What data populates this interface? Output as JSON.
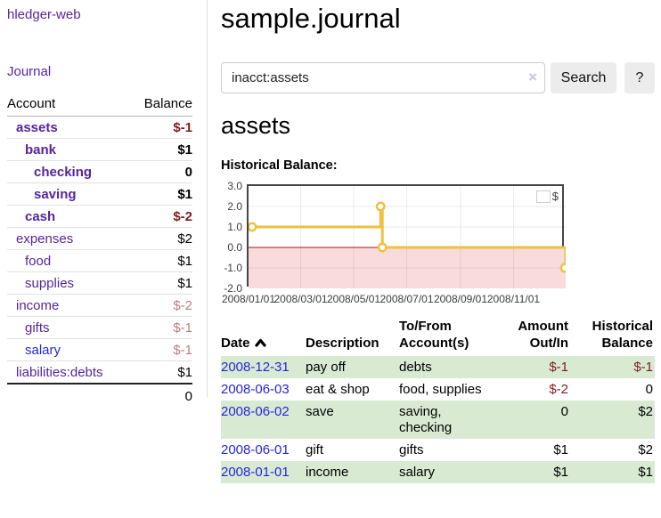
{
  "app": {
    "brand": "hledger-web"
  },
  "sidebar": {
    "nav": {
      "journal": "Journal"
    },
    "table_headers": {
      "account": "Account",
      "balance": "Balance"
    },
    "accounts": [
      {
        "name": "assets",
        "balance": "$-1",
        "level": 1,
        "bold": true,
        "balance_class": "neg"
      },
      {
        "name": "bank",
        "balance": "$1",
        "level": 2,
        "bold": true,
        "balance_class": ""
      },
      {
        "name": "checking",
        "balance": "0",
        "level": 3,
        "bold": true,
        "balance_class": ""
      },
      {
        "name": "saving",
        "balance": "$1",
        "level": 3,
        "bold": true,
        "balance_class": ""
      },
      {
        "name": "cash",
        "balance": "$-2",
        "level": 2,
        "bold": true,
        "balance_class": "neg"
      },
      {
        "name": "expenses",
        "balance": "$2",
        "level": 1,
        "bold": false,
        "balance_class": ""
      },
      {
        "name": "food",
        "balance": "$1",
        "level": 2,
        "bold": false,
        "balance_class": ""
      },
      {
        "name": "supplies",
        "balance": "$1",
        "level": 2,
        "bold": false,
        "balance_class": ""
      },
      {
        "name": "income",
        "balance": "$-2",
        "level": 1,
        "bold": false,
        "balance_class": "negfaded"
      },
      {
        "name": "gifts",
        "balance": "$-1",
        "level": 2,
        "bold": false,
        "balance_class": "negfaded"
      },
      {
        "name": "salary",
        "balance": "$-1",
        "level": 2,
        "bold": false,
        "balance_class": "negfaded",
        "link_blue": true
      },
      {
        "name": "liabilities:debts",
        "balance": "$1",
        "level": 1,
        "bold": false,
        "balance_class": ""
      }
    ],
    "total": "0"
  },
  "header": {
    "title": "sample.journal"
  },
  "search": {
    "value": "inacct:assets",
    "clear_icon": "×",
    "button_label": "Search",
    "help_label": "?"
  },
  "report": {
    "title": "assets",
    "chart_heading": "Historical Balance:"
  },
  "chart_data": {
    "type": "line",
    "title": "Historical Balance",
    "step": true,
    "xrange": [
      "2008-01-01",
      "2008-12-31"
    ],
    "ylim": [
      -2,
      3
    ],
    "yticks": [
      3.0,
      2.0,
      1.0,
      0.0,
      -1.0,
      -2.0
    ],
    "ytick_labels": [
      "3.0",
      "2.0",
      "1.0",
      "0.0",
      "-1.0",
      "-2.0"
    ],
    "xticks": [
      "2008-01-01",
      "2008-03-01",
      "2008-05-01",
      "2008-07-01",
      "2008-09-01",
      "2008-11-01"
    ],
    "xtick_labels": [
      "2008/01/01",
      "2008/03/01",
      "2008/05/01",
      "2008/07/01",
      "2008/09/01",
      "2008/11/01"
    ],
    "grid": true,
    "legend_position": "top-right",
    "series": [
      {
        "name": "$",
        "color": "#edc240",
        "points": [
          [
            "2008-01-01",
            1
          ],
          [
            "2008-06-01",
            2
          ],
          [
            "2008-06-03",
            0
          ],
          [
            "2008-12-31",
            -1
          ]
        ]
      }
    ],
    "colors": {
      "line": "#edc240",
      "marker_fill": "#ffffff",
      "negative_region_fill": "#f9dbdb",
      "zero_line": "#a31515",
      "grid": "rgba(0,0,0,0.08)",
      "border": "#454545"
    }
  },
  "register": {
    "columns": [
      {
        "label": "Date",
        "sort": "asc"
      },
      {
        "label": "Description"
      },
      {
        "label": "To/From Account(s)"
      },
      {
        "label": "Amount Out/In",
        "align": "right"
      },
      {
        "label": "Historical Balance",
        "align": "right"
      }
    ],
    "rows": [
      {
        "date": "2008-12-31",
        "description": "pay off",
        "accounts": "debts",
        "amount": "$-1",
        "amount_neg": true,
        "balance": "$-1",
        "balance_neg": true
      },
      {
        "date": "2008-06-03",
        "description": "eat & shop",
        "accounts": "food, supplies",
        "amount": "$-2",
        "amount_neg": true,
        "balance": "0",
        "balance_neg": false
      },
      {
        "date": "2008-06-02",
        "description": "save",
        "accounts": "saving,\nchecking",
        "amount": "0",
        "amount_neg": false,
        "balance": "$2",
        "balance_neg": false
      },
      {
        "date": "2008-06-01",
        "description": "gift",
        "accounts": "gifts",
        "amount": "$1",
        "amount_neg": false,
        "balance": "$2",
        "balance_neg": false
      },
      {
        "date": "2008-01-01",
        "description": "income",
        "accounts": "salary",
        "amount": "$1",
        "amount_neg": false,
        "balance": "$1",
        "balance_neg": false
      }
    ]
  },
  "colors": {
    "link_purple": "#55259b",
    "link_blue": "#2626d9",
    "negative_strong": "#7f1c1c",
    "negative_faded": "#b97e7e",
    "row_stripe_green": "#d9ead3"
  }
}
